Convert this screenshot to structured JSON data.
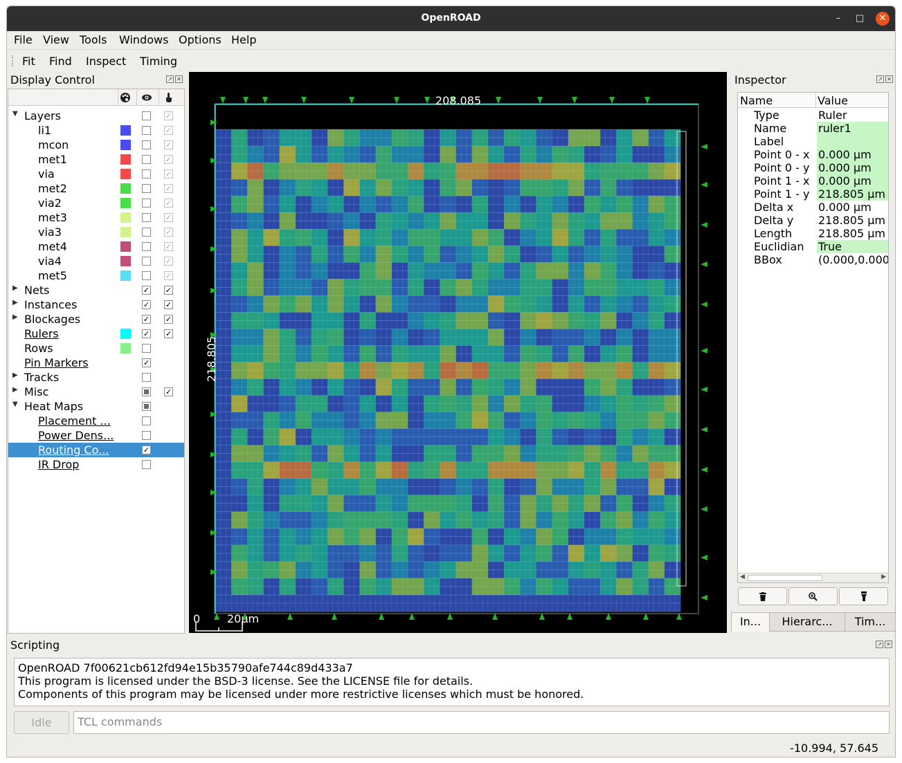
{
  "window": {
    "title": "OpenROAD"
  },
  "menubar": {
    "items": [
      "File",
      "View",
      "Tools",
      "Windows",
      "Options",
      "Help"
    ]
  },
  "toolbar": {
    "items": [
      "Fit",
      "Find",
      "Inspect",
      "Timing"
    ]
  },
  "display_control": {
    "title": "Display Control",
    "column_icons": [
      "palette-icon",
      "eye-icon",
      "hand-pointer-icon"
    ],
    "rows": [
      {
        "label": "Layers",
        "level": 0,
        "expander": "open",
        "visible": "off",
        "selectable": "dim"
      },
      {
        "label": "li1",
        "level": 1,
        "color": "#4a4af2",
        "visible": "off",
        "selectable": "dim"
      },
      {
        "label": "mcon",
        "level": 1,
        "color": "#4a4af2",
        "visible": "off",
        "selectable": "dim"
      },
      {
        "label": "met1",
        "level": 1,
        "color": "#f24a4a",
        "visible": "off",
        "selectable": "dim"
      },
      {
        "label": "via",
        "level": 1,
        "color": "#f24a4a",
        "visible": "off",
        "selectable": "dim"
      },
      {
        "label": "met2",
        "level": 1,
        "color": "#4ade4a",
        "visible": "off",
        "selectable": "dim"
      },
      {
        "label": "via2",
        "level": 1,
        "color": "#4ade4a",
        "visible": "off",
        "selectable": "dim"
      },
      {
        "label": "met3",
        "level": 1,
        "color": "#d2f28c",
        "visible": "off",
        "selectable": "dim"
      },
      {
        "label": "via3",
        "level": 1,
        "color": "#d2f28c",
        "visible": "off",
        "selectable": "dim"
      },
      {
        "label": "met4",
        "level": 1,
        "color": "#c0507a",
        "visible": "off",
        "selectable": "dim"
      },
      {
        "label": "via4",
        "level": 1,
        "color": "#c0507a",
        "visible": "off",
        "selectable": "dim"
      },
      {
        "label": "met5",
        "level": 1,
        "color": "#5ae0f2",
        "visible": "off",
        "selectable": "dim"
      },
      {
        "label": "Nets",
        "level": 0,
        "expander": "closed",
        "visible": "on",
        "selectable": "on"
      },
      {
        "label": "Instances",
        "level": 0,
        "expander": "closed",
        "visible": "on",
        "selectable": "on"
      },
      {
        "label": "Blockages",
        "level": 0,
        "expander": "closed",
        "visible": "on",
        "selectable": "on"
      },
      {
        "label": "Rulers",
        "level": 0,
        "link": true,
        "color": "#00ffff",
        "visible": "on",
        "selectable": "on"
      },
      {
        "label": "Rows",
        "level": 0,
        "color": "#88f088",
        "visible": "off"
      },
      {
        "label": "Pin Markers",
        "level": 0,
        "link": true,
        "visible": "on"
      },
      {
        "label": "Tracks",
        "level": 0,
        "expander": "closed",
        "visible": "off"
      },
      {
        "label": "Misc",
        "level": 0,
        "expander": "closed",
        "visible": "partial",
        "selectable": "on"
      },
      {
        "label": "Heat Maps",
        "level": 0,
        "expander": "open",
        "visible": "partial"
      },
      {
        "label": "Placement ...",
        "level": 1,
        "link": true,
        "visible": "off"
      },
      {
        "label": "Power Dens...",
        "level": 1,
        "link": true,
        "visible": "off"
      },
      {
        "label": "Routing Co...",
        "level": 1,
        "link": true,
        "visible": "on",
        "selected": true
      },
      {
        "label": "IR Drop",
        "level": 1,
        "link": true,
        "visible": "off"
      }
    ]
  },
  "layout_view": {
    "ruler_horizontal_label": "208.085",
    "ruler_vertical_label": "218.805",
    "scale_zero": "0",
    "scale_label": "20μm"
  },
  "inspector": {
    "title": "Inspector",
    "columns": [
      "Name",
      "Value"
    ],
    "rows": [
      {
        "name": "Type",
        "value": "Ruler",
        "editable": false
      },
      {
        "name": "Name",
        "value": "ruler1",
        "editable": true
      },
      {
        "name": "Label",
        "value": "",
        "editable": true
      },
      {
        "name": "Point 0 - x",
        "value": "0.000 μm",
        "editable": true
      },
      {
        "name": "Point 0 - y",
        "value": "0.000 μm",
        "editable": true
      },
      {
        "name": "Point 1 - x",
        "value": "0.000 μm",
        "editable": true
      },
      {
        "name": "Point 1 - y",
        "value": "218.805 μm",
        "editable": true
      },
      {
        "name": "Delta x",
        "value": "0.000 μm",
        "editable": false
      },
      {
        "name": "Delta y",
        "value": "218.805 μm",
        "editable": false
      },
      {
        "name": "Length",
        "value": "218.805 μm",
        "editable": false
      },
      {
        "name": "Euclidian",
        "value": "True",
        "editable": true
      },
      {
        "name": "BBox",
        "value": "(0.000,0.000",
        "editable": false
      }
    ],
    "buttons": [
      "trash-icon",
      "zoom-icon",
      "highlight-icon"
    ],
    "tabs": [
      "In...",
      "Hierarc...",
      "Tim..."
    ]
  },
  "scripting": {
    "title": "Scripting",
    "output": [
      "OpenROAD 7f00621cb612fd94e15b35790afe744c89d433a7",
      "This program is licensed under the BSD-3 license. See the LICENSE file for details.",
      "Components of this program may be licensed under more restrictive licenses which must be honored."
    ],
    "status_button": "Idle",
    "input_placeholder": "TCL commands"
  },
  "statusbar": {
    "coordinates": "-10.994, 57.645"
  }
}
